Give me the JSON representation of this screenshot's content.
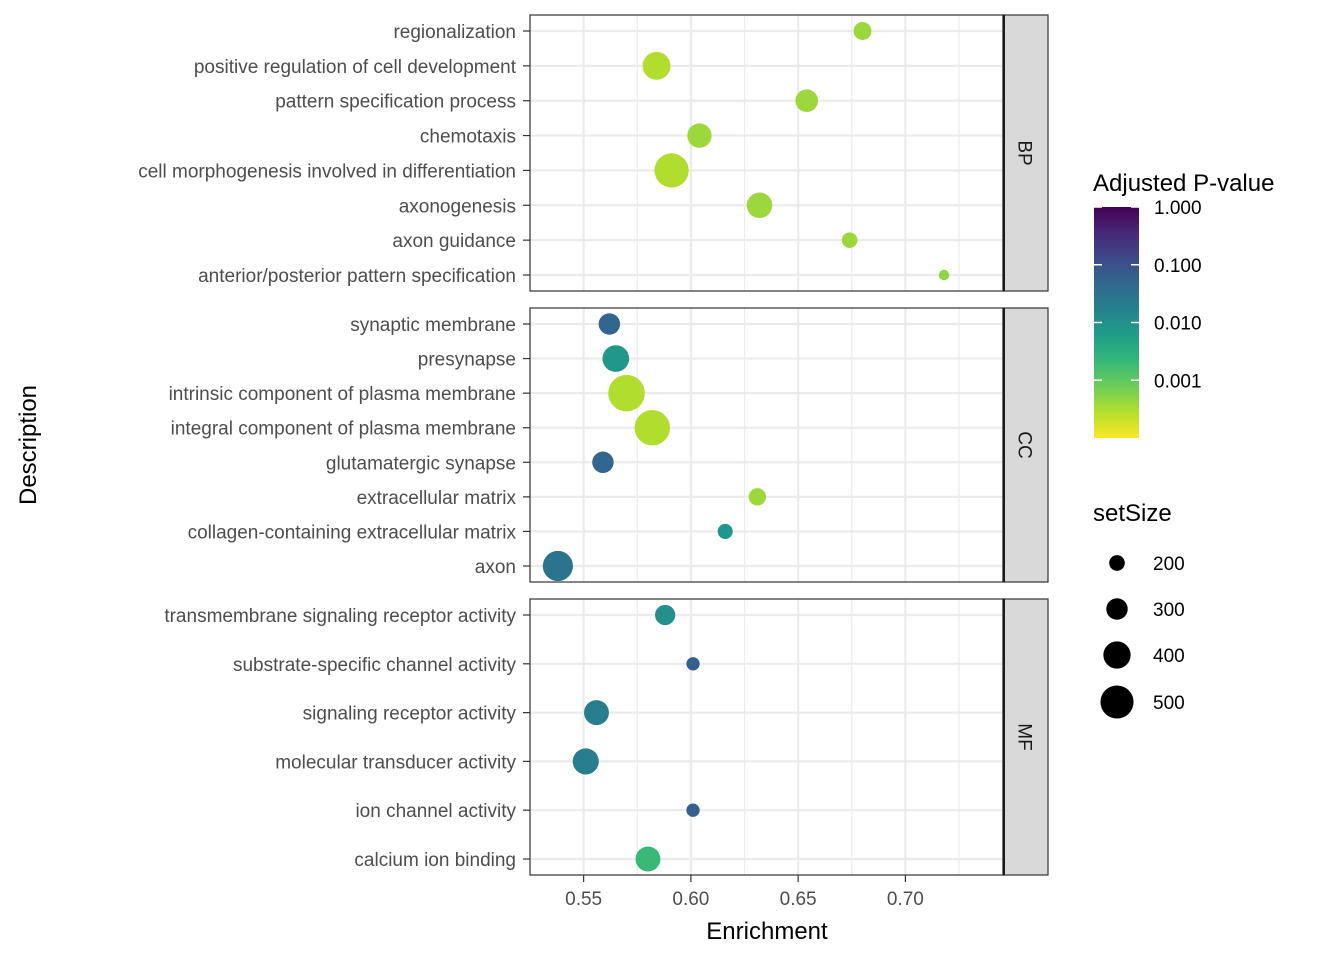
{
  "chart_data": {
    "type": "scatter",
    "xlabel": "Enrichment",
    "ylabel": "Description",
    "xlim": [
      0.525,
      0.7455
    ],
    "x_ticks": [
      0.55,
      0.6,
      0.65,
      0.7
    ],
    "x_tick_labels": [
      "0.55",
      "0.60",
      "0.65",
      "0.70"
    ],
    "grid": true,
    "legend_position": "right",
    "facets": [
      {
        "label": "BP",
        "rows": [
          {
            "description": "regionalization",
            "enrichment": 0.68,
            "setSize": 240,
            "p_adjust": 0.0004
          },
          {
            "description": "positive regulation of cell development",
            "enrichment": 0.584,
            "setSize": 410,
            "p_adjust": 0.0003
          },
          {
            "description": "pattern specification process",
            "enrichment": 0.654,
            "setSize": 320,
            "p_adjust": 0.0004
          },
          {
            "description": "chemotaxis",
            "enrichment": 0.604,
            "setSize": 350,
            "p_adjust": 0.0004
          },
          {
            "description": "cell morphogenesis involved in differentiation",
            "enrichment": 0.591,
            "setSize": 520,
            "p_adjust": 0.0003
          },
          {
            "description": "axonogenesis",
            "enrichment": 0.632,
            "setSize": 370,
            "p_adjust": 0.0004
          },
          {
            "description": "axon guidance",
            "enrichment": 0.674,
            "setSize": 200,
            "p_adjust": 0.0004
          },
          {
            "description": "anterior/posterior pattern specification",
            "enrichment": 0.718,
            "setSize": 110,
            "p_adjust": 0.0005
          }
        ]
      },
      {
        "label": "CC",
        "rows": [
          {
            "description": "synaptic membrane",
            "enrichment": 0.562,
            "setSize": 300,
            "p_adjust": 0.05
          },
          {
            "description": "presynapse",
            "enrichment": 0.565,
            "setSize": 390,
            "p_adjust": 0.008
          },
          {
            "description": "intrinsic component of plasma membrane",
            "enrichment": 0.57,
            "setSize": 560,
            "p_adjust": 0.0003
          },
          {
            "description": "integral component of plasma membrane",
            "enrichment": 0.582,
            "setSize": 540,
            "p_adjust": 0.0003
          },
          {
            "description": "glutamatergic synapse",
            "enrichment": 0.559,
            "setSize": 300,
            "p_adjust": 0.05
          },
          {
            "description": "extracellular matrix",
            "enrichment": 0.631,
            "setSize": 230,
            "p_adjust": 0.0004
          },
          {
            "description": "collagen-containing extracellular matrix",
            "enrichment": 0.616,
            "setSize": 190,
            "p_adjust": 0.008
          },
          {
            "description": "axon",
            "enrichment": 0.538,
            "setSize": 450,
            "p_adjust": 0.03
          }
        ]
      },
      {
        "label": "MF",
        "rows": [
          {
            "description": "transmembrane signaling receptor activity",
            "enrichment": 0.588,
            "setSize": 280,
            "p_adjust": 0.01
          },
          {
            "description": "substrate-specific channel activity",
            "enrichment": 0.601,
            "setSize": 160,
            "p_adjust": 0.06
          },
          {
            "description": "signaling receptor activity",
            "enrichment": 0.556,
            "setSize": 360,
            "p_adjust": 0.02
          },
          {
            "description": "molecular transducer activity",
            "enrichment": 0.551,
            "setSize": 380,
            "p_adjust": 0.02
          },
          {
            "description": "ion channel activity",
            "enrichment": 0.601,
            "setSize": 160,
            "p_adjust": 0.06
          },
          {
            "description": "calcium ion binding",
            "enrichment": 0.58,
            "setSize": 360,
            "p_adjust": 0.002
          }
        ]
      }
    ],
    "color_legend": {
      "title": "Adjusted P-value",
      "scale": "log10",
      "range": [
        0.0001,
        1.0
      ],
      "breaks": [
        1.0,
        0.1,
        0.01,
        0.001
      ],
      "break_labels": [
        "1.000",
        "0.100",
        "0.010",
        "0.001"
      ],
      "palette": [
        "#fde725",
        "#b5de2b",
        "#6ece58",
        "#35b779",
        "#1f9e89",
        "#26828e",
        "#31688e",
        "#3e4989",
        "#482878",
        "#440154"
      ]
    },
    "size_legend": {
      "title": "setSize",
      "breaks": [
        200,
        300,
        400,
        500
      ],
      "break_labels": [
        "200",
        "300",
        "400",
        "500"
      ]
    }
  }
}
